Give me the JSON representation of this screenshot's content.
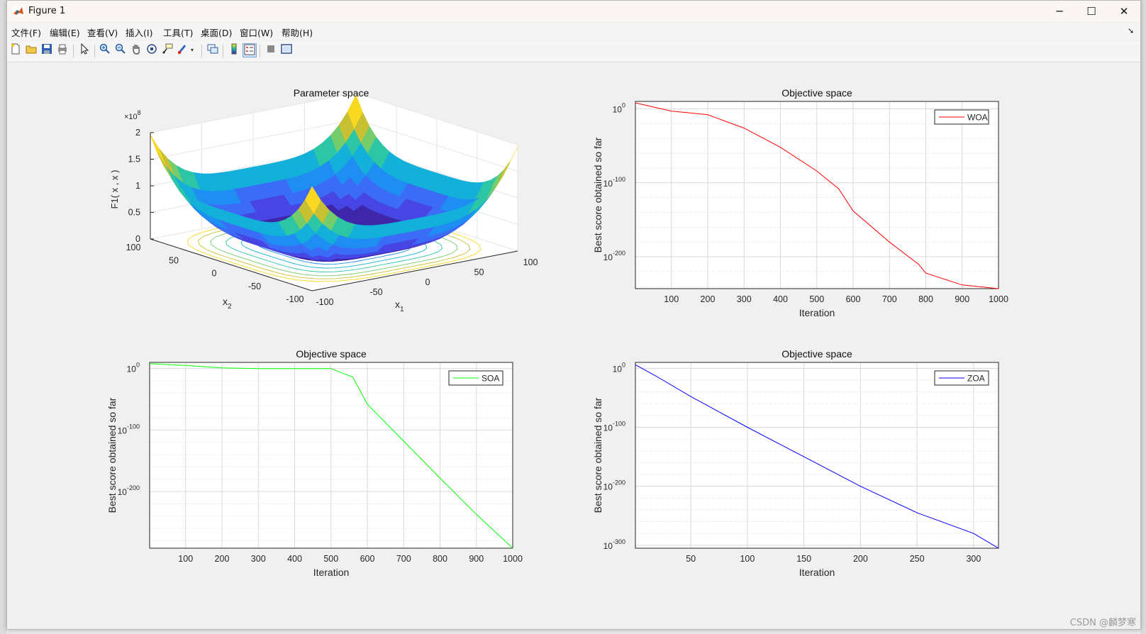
{
  "window": {
    "title": "Figure 1",
    "controls": {
      "minimize": "─",
      "maximize": "☐",
      "close": "✕"
    }
  },
  "menu": [
    "文件(F)",
    "编辑(E)",
    "查看(V)",
    "插入(I)",
    "工具(T)",
    "桌面(D)",
    "窗口(W)",
    "帮助(H)"
  ],
  "toolbar": {
    "icons": [
      "new-figure-icon",
      "open-icon",
      "save-icon",
      "print-icon",
      "pointer-icon",
      "zoom-in-icon",
      "zoom-out-icon",
      "pan-icon",
      "rotate-3d-icon",
      "data-cursor-icon",
      "brush-icon",
      "link-icon",
      "colorbar-icon",
      "legend-icon",
      "hide-tools-icon",
      "dock-icon"
    ]
  },
  "watermark": "CSDN @麟梦寒",
  "chart_data": [
    {
      "type": "surface3d",
      "title": "Parameter space",
      "xlabel": "x",
      "xlabel_sub": "1",
      "ylabel": "x",
      "ylabel_sub": "2",
      "zlabel": "F1( x , x )",
      "z_exponent": "×10",
      "z_exponent_power": "8",
      "x_ticks": [
        "-100",
        "-50",
        "0",
        "50",
        "100"
      ],
      "y_ticks": [
        "-100",
        "-50",
        "0",
        "50",
        "100"
      ],
      "z_ticks": [
        "0",
        "0.5",
        "1",
        "1.5",
        "2"
      ],
      "zlim": [
        0,
        200000000.0
      ],
      "colormap": "parula",
      "contours": true
    },
    {
      "type": "line",
      "title": "Objective space",
      "xlabel": "Iteration",
      "ylabel": "Best score obtained so far",
      "yscale": "log",
      "xlim": [
        1,
        1000
      ],
      "x_ticks": [
        "100",
        "200",
        "300",
        "400",
        "500",
        "600",
        "700",
        "800",
        "900",
        "1000"
      ],
      "y_tick_exponents": [
        "0",
        "-100",
        "-200"
      ],
      "ylim_exp": [
        -243,
        10
      ],
      "grid": true,
      "legend_position": "top-right",
      "series": [
        {
          "name": "WOA",
          "color": "#ff0000",
          "x": [
            1,
            100,
            200,
            300,
            400,
            500,
            560,
            600,
            700,
            780,
            800,
            900,
            1000
          ],
          "log10_y": [
            8,
            -3,
            -8,
            -26,
            -52,
            -84,
            -108,
            -138,
            -180,
            -210,
            -222,
            -238,
            -243
          ]
        }
      ]
    },
    {
      "type": "line",
      "title": "Objective space",
      "xlabel": "Iteration",
      "ylabel": "Best score obtained so far",
      "yscale": "log",
      "xlim": [
        1,
        1000
      ],
      "x_ticks": [
        "100",
        "200",
        "300",
        "400",
        "500",
        "600",
        "700",
        "800",
        "900",
        "1000"
      ],
      "y_tick_exponents": [
        "0",
        "-100",
        "-200"
      ],
      "ylim_exp": [
        -292,
        10
      ],
      "grid": true,
      "legend_position": "top-right",
      "series": [
        {
          "name": "SOA",
          "color": "#00ff00",
          "x": [
            1,
            100,
            200,
            300,
            400,
            500,
            560,
            600,
            700,
            800,
            900,
            1000
          ],
          "log10_y": [
            8,
            5,
            1,
            0,
            0,
            0,
            -14,
            -58,
            -118,
            -178,
            -237,
            -292
          ]
        }
      ]
    },
    {
      "type": "line",
      "title": "Objective space",
      "xlabel": "Iteration",
      "ylabel": "Best score obtained so far",
      "yscale": "log",
      "xlim": [
        1,
        322
      ],
      "x_ticks": [
        "50",
        "100",
        "150",
        "200",
        "250",
        "300"
      ],
      "y_tick_exponents": [
        "0",
        "-100",
        "-200",
        "-300"
      ],
      "ylim_exp": [
        -305,
        10
      ],
      "grid": true,
      "legend_position": "top-right",
      "series": [
        {
          "name": "ZOA",
          "color": "#0000ff",
          "x": [
            1,
            20,
            50,
            100,
            135,
            150,
            200,
            250,
            300,
            322
          ],
          "log10_y": [
            6,
            -14,
            -48,
            -100,
            -135,
            -150,
            -200,
            -245,
            -280,
            -305
          ]
        }
      ]
    }
  ]
}
